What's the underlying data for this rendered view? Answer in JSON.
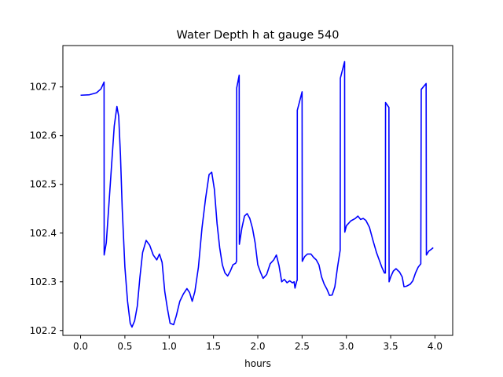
{
  "chart_data": {
    "type": "line",
    "title": "Water Depth h at gauge 540",
    "xlabel": "hours",
    "ylabel": "",
    "xlim": [
      -0.2,
      4.2
    ],
    "ylim": [
      102.19,
      102.785
    ],
    "x_ticks": [
      0.0,
      0.5,
      1.0,
      1.5,
      2.0,
      2.5,
      3.0,
      3.5,
      4.0
    ],
    "x_tick_labels": [
      "0.0",
      "0.5",
      "1.0",
      "1.5",
      "2.0",
      "2.5",
      "3.0",
      "3.5",
      "4.0"
    ],
    "y_ticks": [
      102.2,
      102.3,
      102.4,
      102.5,
      102.6,
      102.7
    ],
    "y_tick_labels": [
      "102.2",
      "102.3",
      "102.4",
      "102.5",
      "102.6",
      "102.7"
    ],
    "grid": false,
    "series": [
      {
        "color": "#0000ff",
        "points": [
          [
            0.0,
            102.683
          ],
          [
            0.1,
            102.684
          ],
          [
            0.18,
            102.688
          ],
          [
            0.23,
            102.696
          ],
          [
            0.265,
            102.71
          ],
          [
            0.266,
            102.355
          ],
          [
            0.29,
            102.38
          ],
          [
            0.32,
            102.46
          ],
          [
            0.35,
            102.54
          ],
          [
            0.38,
            102.62
          ],
          [
            0.41,
            102.66
          ],
          [
            0.43,
            102.64
          ],
          [
            0.45,
            102.56
          ],
          [
            0.47,
            102.45
          ],
          [
            0.5,
            102.33
          ],
          [
            0.53,
            102.26
          ],
          [
            0.56,
            102.215
          ],
          [
            0.58,
            102.207
          ],
          [
            0.61,
            102.22
          ],
          [
            0.64,
            102.25
          ],
          [
            0.67,
            102.31
          ],
          [
            0.7,
            102.36
          ],
          [
            0.74,
            102.385
          ],
          [
            0.78,
            102.375
          ],
          [
            0.82,
            102.355
          ],
          [
            0.86,
            102.345
          ],
          [
            0.89,
            102.357
          ],
          [
            0.92,
            102.34
          ],
          [
            0.95,
            102.28
          ],
          [
            0.98,
            102.245
          ],
          [
            1.01,
            102.215
          ],
          [
            1.05,
            102.212
          ],
          [
            1.08,
            102.23
          ],
          [
            1.12,
            102.26
          ],
          [
            1.16,
            102.275
          ],
          [
            1.2,
            102.286
          ],
          [
            1.23,
            102.278
          ],
          [
            1.26,
            102.26
          ],
          [
            1.29,
            102.28
          ],
          [
            1.33,
            102.33
          ],
          [
            1.37,
            102.41
          ],
          [
            1.41,
            102.47
          ],
          [
            1.45,
            102.52
          ],
          [
            1.48,
            102.525
          ],
          [
            1.51,
            102.49
          ],
          [
            1.54,
            102.42
          ],
          [
            1.57,
            102.37
          ],
          [
            1.6,
            102.335
          ],
          [
            1.63,
            102.318
          ],
          [
            1.66,
            102.312
          ],
          [
            1.69,
            102.322
          ],
          [
            1.72,
            102.335
          ],
          [
            1.75,
            102.338
          ],
          [
            1.76,
            102.342
          ],
          [
            1.762,
            102.698
          ],
          [
            1.79,
            102.724
          ],
          [
            1.792,
            102.377
          ],
          [
            1.82,
            102.41
          ],
          [
            1.85,
            102.435
          ],
          [
            1.88,
            102.44
          ],
          [
            1.91,
            102.43
          ],
          [
            1.94,
            102.41
          ],
          [
            1.97,
            102.38
          ],
          [
            2.0,
            102.335
          ],
          [
            2.03,
            102.32
          ],
          [
            2.06,
            102.307
          ],
          [
            2.1,
            102.315
          ],
          [
            2.14,
            102.337
          ],
          [
            2.18,
            102.345
          ],
          [
            2.21,
            102.355
          ],
          [
            2.24,
            102.333
          ],
          [
            2.27,
            102.3
          ],
          [
            2.3,
            102.305
          ],
          [
            2.33,
            102.298
          ],
          [
            2.36,
            102.302
          ],
          [
            2.39,
            102.298
          ],
          [
            2.41,
            102.3
          ],
          [
            2.42,
            102.287
          ],
          [
            2.44,
            102.302
          ],
          [
            2.445,
            102.303
          ],
          [
            2.446,
            102.652
          ],
          [
            2.5,
            102.69
          ],
          [
            2.502,
            102.342
          ],
          [
            2.53,
            102.352
          ],
          [
            2.56,
            102.357
          ],
          [
            2.6,
            102.357
          ],
          [
            2.63,
            102.35
          ],
          [
            2.66,
            102.345
          ],
          [
            2.69,
            102.335
          ],
          [
            2.72,
            102.31
          ],
          [
            2.75,
            102.295
          ],
          [
            2.78,
            102.285
          ],
          [
            2.81,
            102.272
          ],
          [
            2.84,
            102.273
          ],
          [
            2.87,
            102.29
          ],
          [
            2.9,
            102.33
          ],
          [
            2.93,
            102.365
          ],
          [
            2.932,
            102.718
          ],
          [
            2.98,
            102.752
          ],
          [
            2.982,
            102.402
          ],
          [
            3.0,
            102.415
          ],
          [
            3.05,
            102.425
          ],
          [
            3.1,
            102.43
          ],
          [
            3.13,
            102.435
          ],
          [
            3.16,
            102.428
          ],
          [
            3.19,
            102.43
          ],
          [
            3.22,
            102.426
          ],
          [
            3.26,
            102.412
          ],
          [
            3.3,
            102.385
          ],
          [
            3.34,
            102.36
          ],
          [
            3.37,
            102.345
          ],
          [
            3.4,
            102.33
          ],
          [
            3.43,
            102.318
          ],
          [
            3.44,
            102.318
          ],
          [
            3.442,
            102.668
          ],
          [
            3.48,
            102.658
          ],
          [
            3.482,
            102.3
          ],
          [
            3.5,
            102.31
          ],
          [
            3.53,
            102.322
          ],
          [
            3.56,
            102.327
          ],
          [
            3.6,
            102.32
          ],
          [
            3.63,
            102.31
          ],
          [
            3.65,
            102.29
          ],
          [
            3.68,
            102.291
          ],
          [
            3.72,
            102.295
          ],
          [
            3.75,
            102.302
          ],
          [
            3.78,
            102.318
          ],
          [
            3.81,
            102.33
          ],
          [
            3.84,
            102.337
          ],
          [
            3.845,
            102.695
          ],
          [
            3.9,
            102.707
          ],
          [
            3.903,
            102.355
          ],
          [
            3.93,
            102.363
          ],
          [
            3.96,
            102.367
          ],
          [
            3.98,
            102.37
          ]
        ]
      }
    ]
  }
}
